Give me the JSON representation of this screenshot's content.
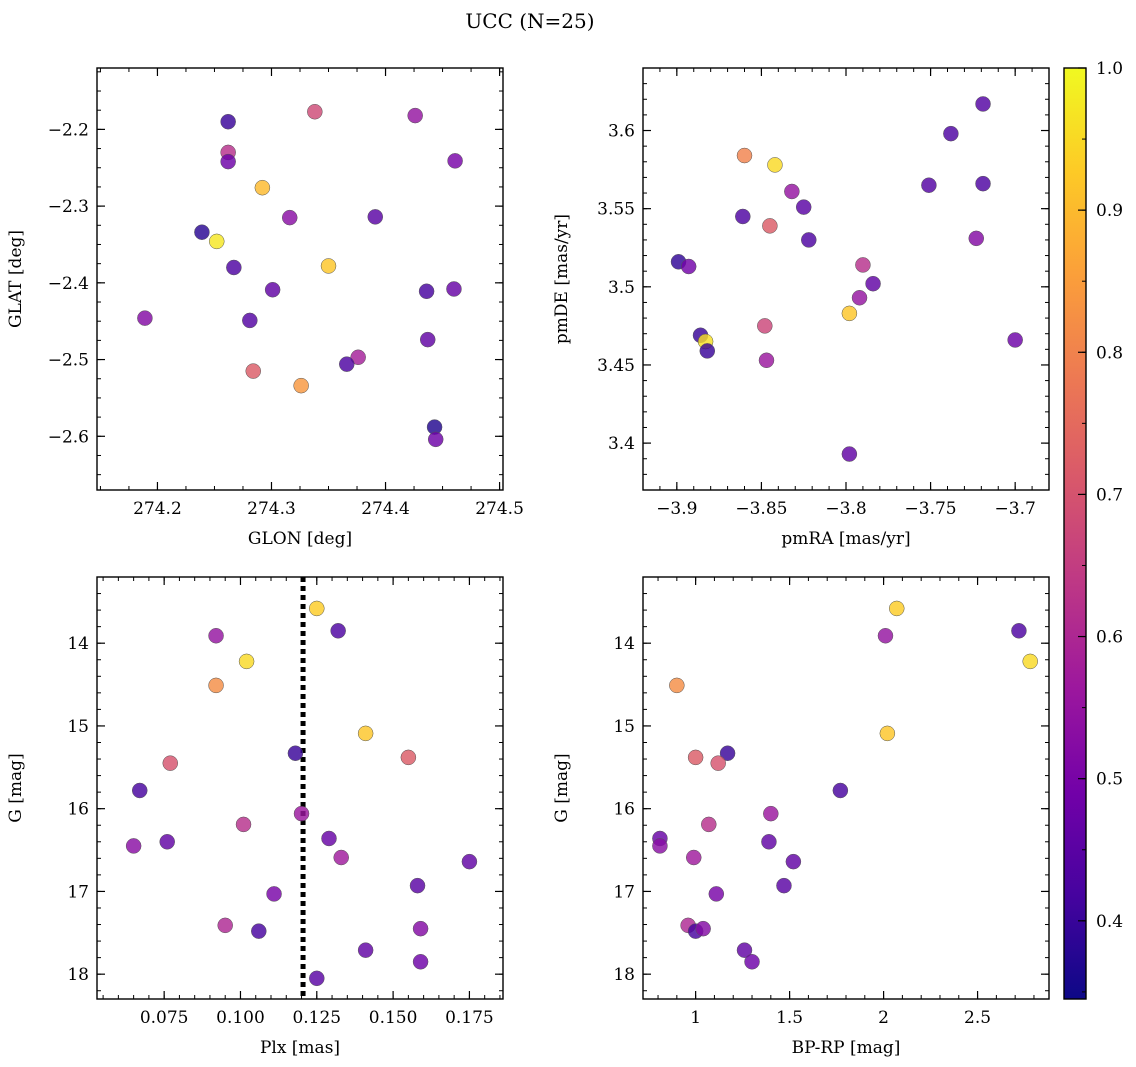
{
  "title": "UCC (N=25)",
  "colorbar": {
    "range": [
      0.345,
      1.0
    ],
    "ticks": [
      0.4,
      0.5,
      0.6,
      0.7,
      0.8,
      0.9,
      1.0
    ],
    "colormap": "plasma",
    "colormap_stops": [
      "#0d0887",
      "#46039f",
      "#7201a8",
      "#9c179e",
      "#bd3786",
      "#d8576b",
      "#ed7953",
      "#fb9f3a",
      "#fdca26",
      "#f0f921"
    ]
  },
  "chart_data": [
    {
      "type": "scatter",
      "xlabel": "GLON [deg]",
      "ylabel": "GLAT [deg]",
      "xlim": [
        274.147,
        274.503
      ],
      "ylim": [
        -2.67,
        -2.12
      ],
      "y_inverted": false,
      "xticks": [
        274.2,
        274.3,
        274.4,
        274.5
      ],
      "yticks": [
        -2.6,
        -2.5,
        -2.4,
        -2.3,
        -2.2
      ],
      "points": [
        {
          "x": 274.262,
          "y": -2.19,
          "c": 0.4
        },
        {
          "x": 274.338,
          "y": -2.177,
          "c": 0.68
        },
        {
          "x": 274.426,
          "y": -2.182,
          "c": 0.55
        },
        {
          "x": 274.262,
          "y": -2.23,
          "c": 0.62
        },
        {
          "x": 274.262,
          "y": -2.242,
          "c": 0.48
        },
        {
          "x": 274.461,
          "y": -2.241,
          "c": 0.5
        },
        {
          "x": 274.292,
          "y": -2.276,
          "c": 0.9
        },
        {
          "x": 274.316,
          "y": -2.315,
          "c": 0.53
        },
        {
          "x": 274.391,
          "y": -2.314,
          "c": 0.45
        },
        {
          "x": 274.239,
          "y": -2.334,
          "c": 0.38
        },
        {
          "x": 274.252,
          "y": -2.346,
          "c": 0.97
        },
        {
          "x": 274.267,
          "y": -2.38,
          "c": 0.43
        },
        {
          "x": 274.35,
          "y": -2.378,
          "c": 0.92
        },
        {
          "x": 274.301,
          "y": -2.409,
          "c": 0.46
        },
        {
          "x": 274.436,
          "y": -2.411,
          "c": 0.42
        },
        {
          "x": 274.46,
          "y": -2.408,
          "c": 0.47
        },
        {
          "x": 274.189,
          "y": -2.446,
          "c": 0.52
        },
        {
          "x": 274.281,
          "y": -2.449,
          "c": 0.44
        },
        {
          "x": 274.437,
          "y": -2.474,
          "c": 0.46
        },
        {
          "x": 274.376,
          "y": -2.497,
          "c": 0.58
        },
        {
          "x": 274.366,
          "y": -2.506,
          "c": 0.43
        },
        {
          "x": 274.284,
          "y": -2.515,
          "c": 0.72
        },
        {
          "x": 274.326,
          "y": -2.534,
          "c": 0.84
        },
        {
          "x": 274.443,
          "y": -2.588,
          "c": 0.37
        },
        {
          "x": 274.444,
          "y": -2.604,
          "c": 0.48
        }
      ]
    },
    {
      "type": "scatter",
      "xlabel": "pmRA [mas/yr]",
      "ylabel": "pmDE [mas/yr]",
      "xlim": [
        -3.92,
        -3.68
      ],
      "ylim": [
        3.37,
        3.64
      ],
      "y_inverted": false,
      "xticks": [
        -3.9,
        -3.85,
        -3.8,
        -3.75,
        -3.7
      ],
      "yticks": [
        3.4,
        3.45,
        3.5,
        3.55,
        3.6
      ],
      "points": [
        {
          "x": -3.719,
          "y": 3.617,
          "c": 0.44
        },
        {
          "x": -3.738,
          "y": 3.598,
          "c": 0.43
        },
        {
          "x": -3.86,
          "y": 3.584,
          "c": 0.8
        },
        {
          "x": -3.842,
          "y": 3.578,
          "c": 0.95
        },
        {
          "x": -3.751,
          "y": 3.565,
          "c": 0.44
        },
        {
          "x": -3.719,
          "y": 3.566,
          "c": 0.43
        },
        {
          "x": -3.832,
          "y": 3.561,
          "c": 0.55
        },
        {
          "x": -3.825,
          "y": 3.551,
          "c": 0.45
        },
        {
          "x": -3.861,
          "y": 3.545,
          "c": 0.43
        },
        {
          "x": -3.845,
          "y": 3.539,
          "c": 0.72
        },
        {
          "x": -3.822,
          "y": 3.53,
          "c": 0.43
        },
        {
          "x": -3.723,
          "y": 3.531,
          "c": 0.52
        },
        {
          "x": -3.899,
          "y": 3.516,
          "c": 0.39
        },
        {
          "x": -3.893,
          "y": 3.513,
          "c": 0.49
        },
        {
          "x": -3.79,
          "y": 3.514,
          "c": 0.62
        },
        {
          "x": -3.784,
          "y": 3.502,
          "c": 0.46
        },
        {
          "x": -3.792,
          "y": 3.493,
          "c": 0.55
        },
        {
          "x": -3.798,
          "y": 3.483,
          "c": 0.92
        },
        {
          "x": -3.848,
          "y": 3.475,
          "c": 0.67
        },
        {
          "x": -3.886,
          "y": 3.469,
          "c": 0.4
        },
        {
          "x": -3.883,
          "y": 3.465,
          "c": 0.96
        },
        {
          "x": -3.882,
          "y": 3.459,
          "c": 0.4
        },
        {
          "x": -3.847,
          "y": 3.453,
          "c": 0.56
        },
        {
          "x": -3.7,
          "y": 3.466,
          "c": 0.48
        },
        {
          "x": -3.798,
          "y": 3.393,
          "c": 0.46
        }
      ]
    },
    {
      "type": "scatter",
      "xlabel": "Plx [mas]",
      "ylabel": "G [mag]",
      "xlim": [
        0.053,
        0.186
      ],
      "ylim": [
        18.3,
        13.2
      ],
      "y_inverted": true,
      "xticks": [
        0.075,
        0.1,
        0.125,
        0.15,
        0.175
      ],
      "xtick_labels": [
        "0.075",
        "0.100",
        "0.125",
        "0.150",
        "0.175"
      ],
      "yticks": [
        14,
        15,
        16,
        17,
        18
      ],
      "vline": 0.1205,
      "points": [
        {
          "x": 0.125,
          "y": 13.58,
          "c": 0.93
        },
        {
          "x": 0.132,
          "y": 13.85,
          "c": 0.43
        },
        {
          "x": 0.092,
          "y": 13.91,
          "c": 0.55
        },
        {
          "x": 0.102,
          "y": 14.22,
          "c": 0.95
        },
        {
          "x": 0.092,
          "y": 14.51,
          "c": 0.82
        },
        {
          "x": 0.141,
          "y": 15.09,
          "c": 0.92
        },
        {
          "x": 0.155,
          "y": 15.38,
          "c": 0.72
        },
        {
          "x": 0.118,
          "y": 15.33,
          "c": 0.4
        },
        {
          "x": 0.077,
          "y": 15.45,
          "c": 0.7
        },
        {
          "x": 0.067,
          "y": 15.78,
          "c": 0.42
        },
        {
          "x": 0.12,
          "y": 16.06,
          "c": 0.56
        },
        {
          "x": 0.101,
          "y": 16.19,
          "c": 0.62
        },
        {
          "x": 0.129,
          "y": 16.36,
          "c": 0.47
        },
        {
          "x": 0.076,
          "y": 16.4,
          "c": 0.46
        },
        {
          "x": 0.065,
          "y": 16.45,
          "c": 0.53
        },
        {
          "x": 0.133,
          "y": 16.59,
          "c": 0.57
        },
        {
          "x": 0.175,
          "y": 16.64,
          "c": 0.46
        },
        {
          "x": 0.158,
          "y": 16.93,
          "c": 0.45
        },
        {
          "x": 0.111,
          "y": 17.03,
          "c": 0.5
        },
        {
          "x": 0.095,
          "y": 17.41,
          "c": 0.6
        },
        {
          "x": 0.106,
          "y": 17.48,
          "c": 0.42
        },
        {
          "x": 0.159,
          "y": 17.45,
          "c": 0.52
        },
        {
          "x": 0.141,
          "y": 17.71,
          "c": 0.46
        },
        {
          "x": 0.159,
          "y": 17.85,
          "c": 0.48
        },
        {
          "x": 0.125,
          "y": 18.05,
          "c": 0.45
        }
      ]
    },
    {
      "type": "scatter",
      "xlabel": "BP-RP [mag]",
      "ylabel": "G [mag]",
      "xlim": [
        0.72,
        2.88
      ],
      "ylim": [
        18.3,
        13.2
      ],
      "y_inverted": true,
      "xticks": [
        1.0,
        1.5,
        2.0,
        2.5
      ],
      "yticks": [
        14,
        15,
        16,
        17,
        18
      ],
      "points": [
        {
          "x": 2.07,
          "y": 13.58,
          "c": 0.93
        },
        {
          "x": 2.72,
          "y": 13.85,
          "c": 0.43
        },
        {
          "x": 2.01,
          "y": 13.91,
          "c": 0.55
        },
        {
          "x": 2.78,
          "y": 14.22,
          "c": 0.95
        },
        {
          "x": 0.9,
          "y": 14.51,
          "c": 0.82
        },
        {
          "x": 2.02,
          "y": 15.09,
          "c": 0.92
        },
        {
          "x": 1.0,
          "y": 15.38,
          "c": 0.72
        },
        {
          "x": 1.17,
          "y": 15.33,
          "c": 0.4
        },
        {
          "x": 1.12,
          "y": 15.45,
          "c": 0.7
        },
        {
          "x": 1.77,
          "y": 15.78,
          "c": 0.42
        },
        {
          "x": 1.4,
          "y": 16.06,
          "c": 0.56
        },
        {
          "x": 1.07,
          "y": 16.19,
          "c": 0.62
        },
        {
          "x": 0.81,
          "y": 16.36,
          "c": 0.47
        },
        {
          "x": 1.39,
          "y": 16.4,
          "c": 0.46
        },
        {
          "x": 0.81,
          "y": 16.45,
          "c": 0.53
        },
        {
          "x": 0.99,
          "y": 16.59,
          "c": 0.57
        },
        {
          "x": 1.52,
          "y": 16.64,
          "c": 0.46
        },
        {
          "x": 1.47,
          "y": 16.93,
          "c": 0.45
        },
        {
          "x": 1.11,
          "y": 17.03,
          "c": 0.5
        },
        {
          "x": 0.96,
          "y": 17.41,
          "c": 0.6
        },
        {
          "x": 1.0,
          "y": 17.48,
          "c": 0.42
        },
        {
          "x": 1.04,
          "y": 17.45,
          "c": 0.52
        },
        {
          "x": 1.26,
          "y": 17.71,
          "c": 0.46
        },
        {
          "x": 1.3,
          "y": 17.85,
          "c": 0.48
        }
      ]
    }
  ]
}
